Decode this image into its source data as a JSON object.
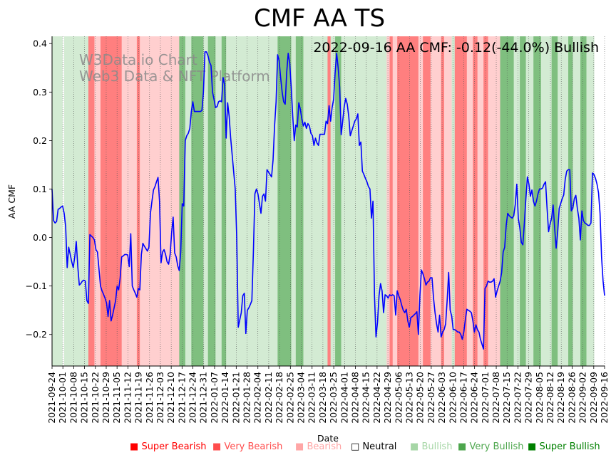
{
  "chart_data": {
    "type": "line",
    "title": "CMF AA TS",
    "annotation": "2022-09-16 AA CMF: -0.12(-44.0%) Bullish",
    "watermark": [
      "W3Data.io Chart",
      "Web3 Data & NFT Platform"
    ],
    "xlabel": "Date",
    "ylabel": "AA CMF",
    "ylim": [
      -0.265,
      0.415
    ],
    "yticks": [
      -0.2,
      -0.1,
      0.0,
      0.1,
      0.2,
      0.3,
      0.4
    ],
    "ytick_labels": [
      "−0.2",
      "−0.1",
      "0.0",
      "0.1",
      "0.2",
      "0.3",
      "0.4"
    ],
    "x_start": "2021-09-24",
    "x_end": "2022-09-16",
    "xtick_labels": [
      "2021-09-24",
      "2021-10-01",
      "2021-10-08",
      "2021-10-15",
      "2021-10-22",
      "2021-10-29",
      "2021-11-05",
      "2021-11-12",
      "2021-11-19",
      "2021-11-26",
      "2021-12-03",
      "2021-12-10",
      "2021-12-17",
      "2021-12-24",
      "2021-12-31",
      "2022-01-07",
      "2022-01-14",
      "2022-01-21",
      "2022-01-28",
      "2022-02-04",
      "2022-02-11",
      "2022-02-18",
      "2022-02-25",
      "2022-03-04",
      "2022-03-11",
      "2022-03-18",
      "2022-03-25",
      "2022-04-01",
      "2022-04-08",
      "2022-04-15",
      "2022-04-22",
      "2022-04-29",
      "2022-05-06",
      "2022-05-13",
      "2022-05-20",
      "2022-05-27",
      "2022-06-03",
      "2022-06-10",
      "2022-06-17",
      "2022-06-24",
      "2022-07-01",
      "2022-07-08",
      "2022-07-15",
      "2022-07-22",
      "2022-07-29",
      "2022-08-05",
      "2022-08-12",
      "2022-08-19",
      "2022-08-26",
      "2022-09-02",
      "2022-09-09",
      "2022-09-16"
    ],
    "series": [
      {
        "name": "AA CMF",
        "color": "#0000ff",
        "values": [
          0.1,
          0.035,
          0.03,
          0.033,
          0.058,
          0.06,
          0.063,
          0.065,
          0.05,
          0.022,
          -0.062,
          -0.02,
          -0.035,
          -0.05,
          -0.062,
          -0.04,
          -0.008,
          -0.06,
          -0.098,
          -0.095,
          -0.09,
          -0.088,
          -0.09,
          -0.13,
          -0.136,
          0.006,
          0.003,
          0.0,
          -0.005,
          -0.025,
          -0.03,
          -0.065,
          -0.1,
          -0.11,
          -0.117,
          -0.125,
          -0.135,
          -0.163,
          -0.13,
          -0.172,
          -0.16,
          -0.145,
          -0.13,
          -0.1,
          -0.108,
          -0.083,
          -0.04,
          -0.038,
          -0.035,
          -0.035,
          -0.036,
          -0.06,
          0.008,
          -0.1,
          -0.108,
          -0.115,
          -0.123,
          -0.105,
          -0.108,
          -0.035,
          -0.012,
          -0.018,
          -0.023,
          -0.028,
          -0.02,
          0.05,
          0.075,
          0.098,
          0.105,
          0.115,
          0.124,
          0.075,
          -0.052,
          -0.03,
          -0.025,
          -0.035,
          -0.05,
          -0.055,
          -0.035,
          0.01,
          0.042,
          -0.032,
          -0.04,
          -0.058,
          -0.068,
          -0.03,
          0.07,
          0.065,
          0.2,
          0.21,
          0.215,
          0.225,
          0.26,
          0.28,
          0.26,
          0.26,
          0.26,
          0.26,
          0.26,
          0.262,
          0.3,
          0.383,
          0.383,
          0.375,
          0.362,
          0.355,
          0.3,
          0.285,
          0.268,
          0.27,
          0.28,
          0.282,
          0.28,
          0.33,
          0.315,
          0.205,
          0.278,
          0.25,
          0.205,
          0.17,
          0.135,
          0.1,
          0.0,
          -0.185,
          -0.17,
          -0.155,
          -0.12,
          -0.115,
          -0.198,
          -0.15,
          -0.145,
          -0.138,
          -0.13,
          -0.03,
          0.09,
          0.1,
          0.09,
          0.07,
          0.05,
          0.085,
          0.09,
          0.075,
          0.14,
          0.135,
          0.13,
          0.125,
          0.16,
          0.23,
          0.28,
          0.377,
          0.365,
          0.33,
          0.3,
          0.28,
          0.275,
          0.34,
          0.38,
          0.36,
          0.31,
          0.25,
          0.2,
          0.232,
          0.228,
          0.278,
          0.265,
          0.245,
          0.23,
          0.238,
          0.225,
          0.235,
          0.23,
          0.215,
          0.21,
          0.19,
          0.205,
          0.195,
          0.19,
          0.213,
          0.213,
          0.213,
          0.213,
          0.24,
          0.235,
          0.272,
          0.24,
          0.268,
          0.285,
          0.34,
          0.38,
          0.35,
          0.31,
          0.212,
          0.24,
          0.27,
          0.287,
          0.275,
          0.25,
          0.21,
          0.22,
          0.23,
          0.24,
          0.245,
          0.255,
          0.19,
          0.197,
          0.137,
          0.13,
          0.122,
          0.115,
          0.105,
          0.1,
          0.04,
          0.075,
          -0.12,
          -0.205,
          -0.175,
          -0.12,
          -0.095,
          -0.11,
          -0.155,
          -0.118,
          -0.12,
          -0.125,
          -0.118,
          -0.12,
          -0.118,
          -0.12,
          -0.16,
          -0.11,
          -0.12,
          -0.128,
          -0.14,
          -0.15,
          -0.155,
          -0.148,
          -0.172,
          -0.185,
          -0.165,
          -0.163,
          -0.16,
          -0.157,
          -0.153,
          -0.2,
          -0.12,
          -0.067,
          -0.075,
          -0.085,
          -0.098,
          -0.092,
          -0.09,
          -0.083,
          -0.083,
          -0.125,
          -0.155,
          -0.178,
          -0.195,
          -0.16,
          -0.205,
          -0.195,
          -0.19,
          -0.178,
          -0.13,
          -0.072,
          -0.15,
          -0.162,
          -0.19,
          -0.19,
          -0.192,
          -0.195,
          -0.195,
          -0.2,
          -0.21,
          -0.195,
          -0.17,
          -0.148,
          -0.15,
          -0.152,
          -0.155,
          -0.172,
          -0.195,
          -0.18,
          -0.19,
          -0.195,
          -0.21,
          -0.22,
          -0.23,
          -0.105,
          -0.1,
          -0.09,
          -0.092,
          -0.092,
          -0.09,
          -0.085,
          -0.123,
          -0.11,
          -0.1,
          -0.09,
          -0.072,
          -0.03,
          -0.02,
          0.025,
          0.05,
          0.045,
          0.042,
          0.04,
          0.045,
          0.068,
          0.11,
          0.04,
          0.02,
          -0.01,
          -0.015,
          0.03,
          0.08,
          0.125,
          0.11,
          0.085,
          0.098,
          0.075,
          0.065,
          0.075,
          0.09,
          0.1,
          0.1,
          0.102,
          0.11,
          0.115,
          0.06,
          0.012,
          0.028,
          0.04,
          0.067,
          0.02,
          -0.022,
          0.01,
          0.06,
          0.07,
          0.08,
          0.088,
          0.12,
          0.137,
          0.14,
          0.14,
          0.055,
          0.06,
          0.08,
          0.087,
          0.06,
          0.04,
          -0.005,
          0.055,
          0.035,
          0.03,
          0.028,
          0.025,
          0.025,
          0.03,
          0.133,
          0.13,
          0.122,
          0.11,
          0.092,
          0.05,
          -0.04,
          -0.09,
          -0.12
        ]
      }
    ],
    "sentiment_bands": [
      {
        "from": 0,
        "to": 7,
        "level": "Bullish"
      },
      {
        "from": 7,
        "to": 8,
        "level": "Neutral"
      },
      {
        "from": 8,
        "to": 24,
        "level": "Bullish"
      },
      {
        "from": 24,
        "to": 28,
        "level": "Very Bearish"
      },
      {
        "from": 28,
        "to": 32,
        "level": "Bearish"
      },
      {
        "from": 32,
        "to": 46,
        "level": "Very Bearish"
      },
      {
        "from": 46,
        "to": 56,
        "level": "Bearish"
      },
      {
        "from": 56,
        "to": 58,
        "level": "Very Bearish"
      },
      {
        "from": 58,
        "to": 84,
        "level": "Bearish"
      },
      {
        "from": 84,
        "to": 88,
        "level": "Very Bullish"
      },
      {
        "from": 88,
        "to": 92,
        "level": "Bullish"
      },
      {
        "from": 92,
        "to": 100,
        "level": "Very Bullish"
      },
      {
        "from": 100,
        "to": 103,
        "level": "Bullish"
      },
      {
        "from": 103,
        "to": 108,
        "level": "Very Bullish"
      },
      {
        "from": 108,
        "to": 112,
        "level": "Bullish"
      },
      {
        "from": 112,
        "to": 115,
        "level": "Very Bullish"
      },
      {
        "from": 115,
        "to": 120,
        "level": "Bullish"
      },
      {
        "from": 120,
        "to": 149,
        "level": "Bullish"
      },
      {
        "from": 149,
        "to": 158,
        "level": "Very Bullish"
      },
      {
        "from": 158,
        "to": 161,
        "level": "Bullish"
      },
      {
        "from": 161,
        "to": 166,
        "level": "Very Bullish"
      },
      {
        "from": 166,
        "to": 176,
        "level": "Bullish"
      },
      {
        "from": 176,
        "to": 182,
        "level": "Bullish"
      },
      {
        "from": 182,
        "to": 184,
        "level": "Very Bearish"
      },
      {
        "from": 184,
        "to": 187,
        "level": "Bullish"
      },
      {
        "from": 187,
        "to": 191,
        "level": "Very Bullish"
      },
      {
        "from": 191,
        "to": 202,
        "level": "Bullish"
      },
      {
        "from": 202,
        "to": 208,
        "level": "Bullish"
      },
      {
        "from": 208,
        "to": 221,
        "level": "Bullish"
      },
      {
        "from": 221,
        "to": 223,
        "level": "Bearish"
      },
      {
        "from": 223,
        "to": 225,
        "level": "Very Bearish"
      },
      {
        "from": 225,
        "to": 228,
        "level": "Bearish"
      },
      {
        "from": 228,
        "to": 242,
        "level": "Very Bearish"
      },
      {
        "from": 242,
        "to": 245,
        "level": "Bearish"
      },
      {
        "from": 245,
        "to": 250,
        "level": "Very Bearish"
      },
      {
        "from": 250,
        "to": 257,
        "level": "Bearish"
      },
      {
        "from": 257,
        "to": 259,
        "level": "Very Bearish"
      },
      {
        "from": 259,
        "to": 264,
        "level": "Bearish"
      },
      {
        "from": 264,
        "to": 266,
        "level": "Bullish"
      },
      {
        "from": 266,
        "to": 274,
        "level": "Very Bearish"
      },
      {
        "from": 274,
        "to": 278,
        "level": "Bearish"
      },
      {
        "from": 278,
        "to": 281,
        "level": "Very Bearish"
      },
      {
        "from": 281,
        "to": 285,
        "level": "Bearish"
      },
      {
        "from": 285,
        "to": 288,
        "level": "Very Bearish"
      },
      {
        "from": 288,
        "to": 296,
        "level": "Bearish"
      },
      {
        "from": 296,
        "to": 305,
        "level": "Very Bullish"
      },
      {
        "from": 305,
        "to": 309,
        "level": "Bullish"
      },
      {
        "from": 309,
        "to": 313,
        "level": "Very Bullish"
      },
      {
        "from": 313,
        "to": 318,
        "level": "Bullish"
      },
      {
        "from": 318,
        "to": 323,
        "level": "Very Bullish"
      },
      {
        "from": 323,
        "to": 330,
        "level": "Bullish"
      },
      {
        "from": 330,
        "to": 334,
        "level": "Very Bullish"
      },
      {
        "from": 334,
        "to": 341,
        "level": "Bullish"
      },
      {
        "from": 341,
        "to": 344,
        "level": "Very Bullish"
      },
      {
        "from": 344,
        "to": 349,
        "level": "Bullish"
      },
      {
        "from": 349,
        "to": 353,
        "level": "Very Bullish"
      },
      {
        "from": 353,
        "to": 358,
        "level": "Bullish"
      }
    ],
    "legend": [
      {
        "label": "Super Bearish",
        "color": "#ff0000"
      },
      {
        "label": "Very Bearish",
        "color": "#ff4d4d"
      },
      {
        "label": "Bearish",
        "color": "#ffa6a6"
      },
      {
        "label": "Neutral",
        "color": "#ffffff"
      },
      {
        "label": "Bullish",
        "color": "#a6d6a6"
      },
      {
        "label": "Very Bullish",
        "color": "#4da64d"
      },
      {
        "label": "Super Bullish",
        "color": "#008000"
      }
    ],
    "band_colors": {
      "Super Bearish": "#ff0000",
      "Very Bearish": "#ff7f7f",
      "Bearish": "#ffcfcf",
      "Neutral": "#ffffff",
      "Bullish": "#d3ebd3",
      "Very Bullish": "#7fbf7f",
      "Super Bullish": "#008000"
    },
    "grid": "x-dotted"
  }
}
